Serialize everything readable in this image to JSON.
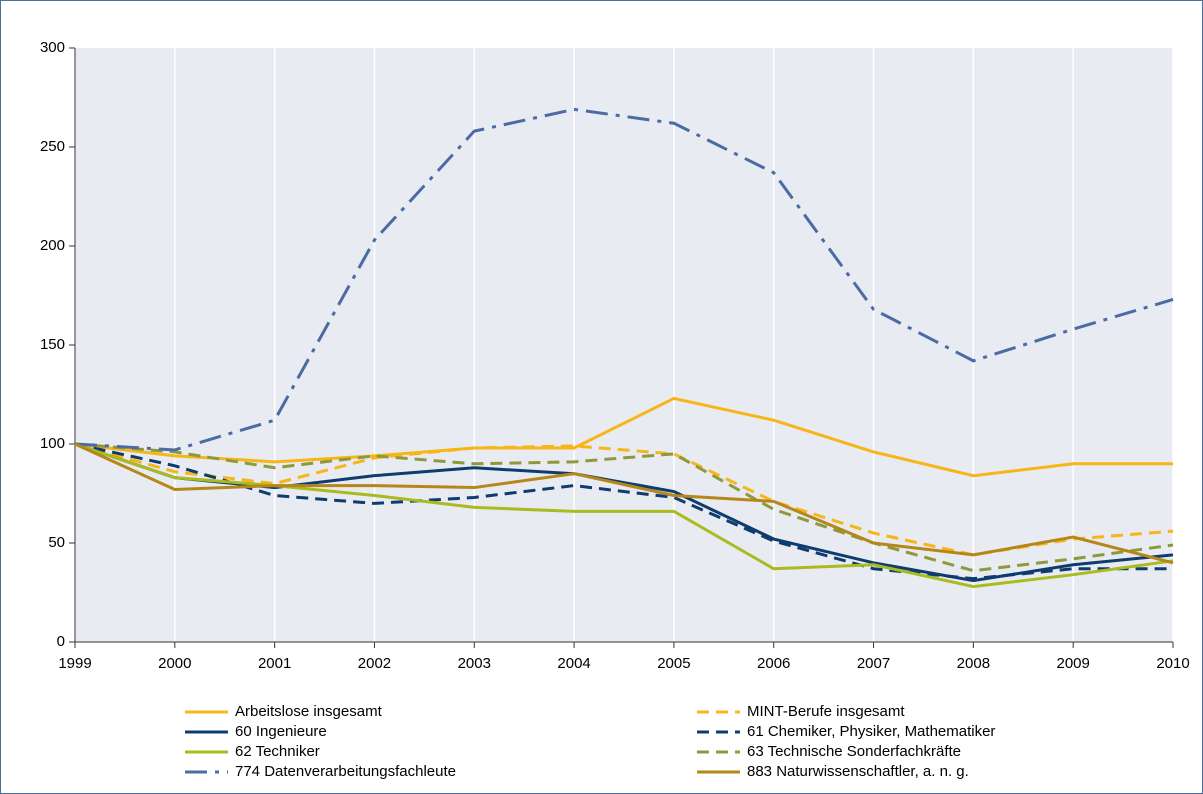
{
  "chart_data": {
    "type": "line",
    "x": [
      1999,
      2000,
      2001,
      2002,
      2003,
      2004,
      2005,
      2006,
      2007,
      2008,
      2009,
      2010
    ],
    "xlim": [
      1999,
      2010
    ],
    "xticks": [
      1999,
      2000,
      2001,
      2002,
      2003,
      2004,
      2005,
      2006,
      2007,
      2008,
      2009,
      2010
    ],
    "ylim": [
      0,
      300
    ],
    "yticks": [
      0,
      50,
      100,
      150,
      200,
      250,
      300
    ],
    "grid": "x",
    "series": [
      {
        "name": "Arbeitslose  insgesamt",
        "color": "#f7b518",
        "dash": "solid",
        "values": [
          100,
          94,
          91,
          94,
          98,
          98,
          123,
          112,
          96,
          84,
          90,
          90
        ]
      },
      {
        "name": "MINT-Berufe insgesamt",
        "color": "#f7b518",
        "dash": "dashed",
        "values": [
          100,
          86,
          80,
          93,
          98,
          99,
          95,
          71,
          55,
          44,
          52,
          56
        ]
      },
      {
        "name": "60 Ingenieure",
        "color": "#0f3c6e",
        "dash": "solid",
        "values": [
          100,
          83,
          78,
          84,
          88,
          85,
          76,
          52,
          40,
          31,
          39,
          44
        ]
      },
      {
        "name": "61 Chemiker,  Physiker,  Mathematiker",
        "color": "#0f3c6e",
        "dash": "dashed",
        "values": [
          100,
          89,
          74,
          70,
          73,
          79,
          73,
          51,
          37,
          32,
          37,
          37
        ]
      },
      {
        "name": "62 Techniker",
        "color": "#a9bb1e",
        "dash": "solid",
        "values": [
          100,
          83,
          79,
          74,
          68,
          66,
          66,
          37,
          39,
          28,
          34,
          41
        ]
      },
      {
        "name": "63 Technische  Sonderfachkräfte",
        "color": "#8d9a3c",
        "dash": "dashed",
        "values": [
          100,
          96,
          88,
          94,
          90,
          91,
          95,
          67,
          50,
          36,
          42,
          49
        ]
      },
      {
        "name": "774 Datenverarbeitungsfachleute",
        "color": "#4b6ba3",
        "dash": "dashdot",
        "values": [
          100,
          97,
          112,
          203,
          258,
          269,
          262,
          237,
          168,
          142,
          158,
          173
        ]
      },
      {
        "name": "883 Naturwissenschaftler,  a. n. g.",
        "color": "#b5861a",
        "dash": "solid",
        "values": [
          100,
          77,
          79,
          79,
          78,
          85,
          74,
          71,
          50,
          44,
          53,
          40
        ]
      }
    ]
  }
}
